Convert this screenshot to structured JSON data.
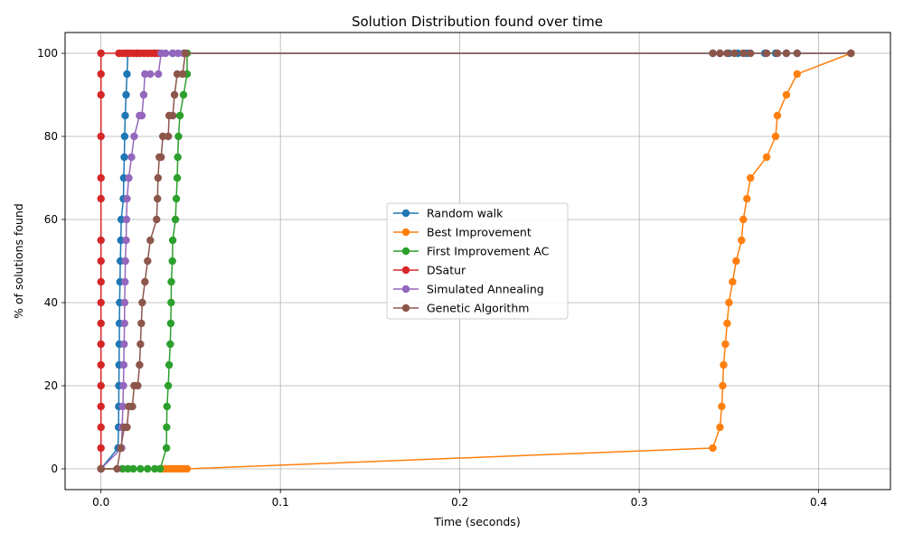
{
  "chart_data": {
    "type": "line",
    "title": "Solution Distribution found over time",
    "xlabel": "Time (seconds)",
    "ylabel": "% of solutions found",
    "xlim": [
      -0.02,
      0.44
    ],
    "ylim": [
      -5,
      105
    ],
    "x_ticks": [
      0.0,
      0.1,
      0.2,
      0.3,
      0.4
    ],
    "x_tick_labels": [
      "0.0",
      "0.1",
      "0.2",
      "0.3",
      "0.4"
    ],
    "y_ticks": [
      0,
      20,
      40,
      60,
      80,
      100
    ],
    "y_tick_labels": [
      "0",
      "20",
      "40",
      "60",
      "80",
      "100"
    ],
    "grid": true,
    "legend_position": "center",
    "series": [
      {
        "name": "Random walk",
        "color": "#1f77b4",
        "points": [
          [
            0.0,
            0
          ],
          [
            0.0095,
            5
          ],
          [
            0.0098,
            10
          ],
          [
            0.0099,
            15
          ],
          [
            0.01,
            20
          ],
          [
            0.0101,
            25
          ],
          [
            0.0102,
            30
          ],
          [
            0.0103,
            35
          ],
          [
            0.0104,
            40
          ],
          [
            0.0106,
            45
          ],
          [
            0.0108,
            50
          ],
          [
            0.0111,
            55
          ],
          [
            0.0113,
            60
          ],
          [
            0.0125,
            65
          ],
          [
            0.0127,
            70
          ],
          [
            0.013,
            75
          ],
          [
            0.0132,
            80
          ],
          [
            0.0135,
            85
          ],
          [
            0.014,
            90
          ],
          [
            0.0145,
            95
          ],
          [
            0.015,
            100
          ],
          [
            0.02,
            100
          ],
          [
            0.03,
            100
          ],
          [
            0.04,
            100
          ],
          [
            0.341,
            100
          ],
          [
            0.345,
            100
          ],
          [
            0.35,
            100
          ],
          [
            0.355,
            100
          ],
          [
            0.36,
            100
          ],
          [
            0.37,
            100
          ],
          [
            0.376,
            100
          ],
          [
            0.382,
            100
          ],
          [
            0.388,
            100
          ],
          [
            0.418,
            100
          ]
        ]
      },
      {
        "name": "Best Improvement",
        "color": "#ff7f0e",
        "points": [
          [
            0.0,
            0
          ],
          [
            0.034,
            0
          ],
          [
            0.036,
            0
          ],
          [
            0.038,
            0
          ],
          [
            0.04,
            0
          ],
          [
            0.042,
            0
          ],
          [
            0.044,
            0
          ],
          [
            0.046,
            0
          ],
          [
            0.048,
            0
          ],
          [
            0.341,
            5
          ],
          [
            0.345,
            10
          ],
          [
            0.346,
            15
          ],
          [
            0.3465,
            20
          ],
          [
            0.347,
            25
          ],
          [
            0.348,
            30
          ],
          [
            0.349,
            35
          ],
          [
            0.35,
            40
          ],
          [
            0.352,
            45
          ],
          [
            0.354,
            50
          ],
          [
            0.357,
            55
          ],
          [
            0.358,
            60
          ],
          [
            0.36,
            65
          ],
          [
            0.362,
            70
          ],
          [
            0.371,
            75
          ],
          [
            0.376,
            80
          ],
          [
            0.377,
            85
          ],
          [
            0.382,
            90
          ],
          [
            0.388,
            95
          ],
          [
            0.418,
            100
          ]
        ]
      },
      {
        "name": "First Improvement AC",
        "color": "#2ca02c",
        "points": [
          [
            0.0,
            0
          ],
          [
            0.012,
            0
          ],
          [
            0.015,
            0
          ],
          [
            0.018,
            0
          ],
          [
            0.022,
            0
          ],
          [
            0.026,
            0
          ],
          [
            0.03,
            0
          ],
          [
            0.033,
            0
          ],
          [
            0.0365,
            5
          ],
          [
            0.0366,
            10
          ],
          [
            0.0368,
            15
          ],
          [
            0.0375,
            20
          ],
          [
            0.038,
            25
          ],
          [
            0.0386,
            30
          ],
          [
            0.0389,
            35
          ],
          [
            0.0391,
            40
          ],
          [
            0.0392,
            45
          ],
          [
            0.0398,
            50
          ],
          [
            0.04,
            55
          ],
          [
            0.0415,
            60
          ],
          [
            0.042,
            65
          ],
          [
            0.0425,
            70
          ],
          [
            0.0428,
            75
          ],
          [
            0.0432,
            80
          ],
          [
            0.044,
            85
          ],
          [
            0.046,
            90
          ],
          [
            0.048,
            95
          ],
          [
            0.048,
            100
          ]
        ]
      },
      {
        "name": "DSatur",
        "color": "#d62728",
        "points": [
          [
            0.0,
            0
          ],
          [
            0.0,
            5
          ],
          [
            0.0,
            10
          ],
          [
            0.0,
            15
          ],
          [
            0.0,
            20
          ],
          [
            0.0,
            25
          ],
          [
            0.0,
            30
          ],
          [
            0.0,
            35
          ],
          [
            0.0,
            40
          ],
          [
            0.0,
            45
          ],
          [
            0.0,
            50
          ],
          [
            0.0,
            55
          ],
          [
            0.0,
            65
          ],
          [
            0.0,
            70
          ],
          [
            0.0,
            80
          ],
          [
            0.0,
            90
          ],
          [
            0.0,
            95
          ],
          [
            0.0,
            100
          ],
          [
            0.01,
            100
          ],
          [
            0.012,
            100
          ],
          [
            0.014,
            100
          ],
          [
            0.016,
            100
          ],
          [
            0.018,
            100
          ],
          [
            0.02,
            100
          ],
          [
            0.022,
            100
          ],
          [
            0.024,
            100
          ],
          [
            0.026,
            100
          ],
          [
            0.028,
            100
          ],
          [
            0.03,
            100
          ],
          [
            0.032,
            100
          ]
        ]
      },
      {
        "name": "Simulated Annealing",
        "color": "#9467bd",
        "points": [
          [
            0.0,
            0
          ],
          [
            0.0115,
            5
          ],
          [
            0.0118,
            10
          ],
          [
            0.0122,
            15
          ],
          [
            0.0125,
            20
          ],
          [
            0.0127,
            25
          ],
          [
            0.0129,
            30
          ],
          [
            0.0131,
            35
          ],
          [
            0.0132,
            40
          ],
          [
            0.0134,
            45
          ],
          [
            0.0136,
            50
          ],
          [
            0.014,
            55
          ],
          [
            0.0142,
            60
          ],
          [
            0.0145,
            65
          ],
          [
            0.0155,
            70
          ],
          [
            0.017,
            75
          ],
          [
            0.0185,
            80
          ],
          [
            0.0215,
            85
          ],
          [
            0.0228,
            85
          ],
          [
            0.0238,
            90
          ],
          [
            0.0245,
            95
          ],
          [
            0.0275,
            95
          ],
          [
            0.032,
            95
          ],
          [
            0.0335,
            100
          ],
          [
            0.036,
            100
          ],
          [
            0.04,
            100
          ],
          [
            0.043,
            100
          ],
          [
            0.046,
            100
          ]
        ]
      },
      {
        "name": "Genetic Algorithm",
        "color": "#8c564b",
        "points": [
          [
            0.0,
            0
          ],
          [
            0.009,
            0
          ],
          [
            0.011,
            5
          ],
          [
            0.013,
            10
          ],
          [
            0.0145,
            10
          ],
          [
            0.0155,
            15
          ],
          [
            0.0175,
            15
          ],
          [
            0.0185,
            20
          ],
          [
            0.0205,
            20
          ],
          [
            0.0215,
            25
          ],
          [
            0.022,
            30
          ],
          [
            0.0225,
            35
          ],
          [
            0.023,
            40
          ],
          [
            0.0245,
            45
          ],
          [
            0.026,
            50
          ],
          [
            0.0275,
            55
          ],
          [
            0.031,
            60
          ],
          [
            0.0315,
            65
          ],
          [
            0.0318,
            70
          ],
          [
            0.0325,
            75
          ],
          [
            0.0335,
            75
          ],
          [
            0.0345,
            80
          ],
          [
            0.0375,
            80
          ],
          [
            0.038,
            85
          ],
          [
            0.04,
            85
          ],
          [
            0.041,
            90
          ],
          [
            0.0425,
            95
          ],
          [
            0.0455,
            95
          ],
          [
            0.047,
            100
          ],
          [
            0.341,
            100
          ],
          [
            0.345,
            100
          ],
          [
            0.349,
            100
          ],
          [
            0.353,
            100
          ],
          [
            0.358,
            100
          ],
          [
            0.362,
            100
          ],
          [
            0.371,
            100
          ],
          [
            0.377,
            100
          ],
          [
            0.382,
            100
          ],
          [
            0.388,
            100
          ],
          [
            0.418,
            100
          ]
        ]
      }
    ]
  }
}
